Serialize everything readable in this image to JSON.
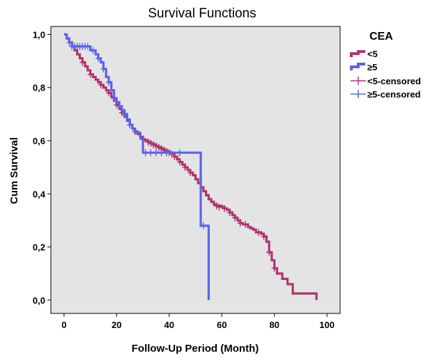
{
  "chart_data": {
    "type": "line",
    "title": "Survival Functions",
    "xlabel": "Follow-Up Period (Month)",
    "ylabel": "Cum Survival",
    "xlim": [
      -5,
      105
    ],
    "ylim": [
      -0.05,
      1.03
    ],
    "xticks": [
      0,
      20,
      40,
      60,
      80,
      100
    ],
    "xtick_labels": [
      "0",
      "20",
      "40",
      "60",
      "80",
      "100"
    ],
    "yticks": [
      0.0,
      0.2,
      0.4,
      0.6,
      0.8,
      1.0
    ],
    "ytick_labels": [
      "0,0",
      "0,2",
      "0,4",
      "0,6",
      "0,8",
      "1,0"
    ],
    "grid": false,
    "background": "#e4e4e4",
    "legend": {
      "title": "CEA",
      "position": "right",
      "entries": [
        "<5",
        "≥5",
        "<5-censored",
        "≥5-censored"
      ]
    },
    "series": [
      {
        "name": "<5",
        "color": "#b0346e",
        "steps": [
          [
            0,
            1.0
          ],
          [
            1,
            0.985
          ],
          [
            2,
            0.97
          ],
          [
            3,
            0.955
          ],
          [
            4,
            0.94
          ],
          [
            5,
            0.925
          ],
          [
            6,
            0.91
          ],
          [
            7,
            0.895
          ],
          [
            8,
            0.88
          ],
          [
            9,
            0.865
          ],
          [
            10,
            0.85
          ],
          [
            11,
            0.84
          ],
          [
            12,
            0.83
          ],
          [
            13,
            0.82
          ],
          [
            14,
            0.81
          ],
          [
            15,
            0.8
          ],
          [
            16,
            0.79
          ],
          [
            17,
            0.78
          ],
          [
            18,
            0.765
          ],
          [
            19,
            0.75
          ],
          [
            20,
            0.735
          ],
          [
            21,
            0.72
          ],
          [
            22,
            0.705
          ],
          [
            23,
            0.69
          ],
          [
            24,
            0.675
          ],
          [
            25,
            0.66
          ],
          [
            26,
            0.645
          ],
          [
            27,
            0.635
          ],
          [
            28,
            0.625
          ],
          [
            29,
            0.615
          ],
          [
            30,
            0.605
          ],
          [
            31,
            0.6
          ],
          [
            32,
            0.595
          ],
          [
            33,
            0.59
          ],
          [
            34,
            0.585
          ],
          [
            35,
            0.58
          ],
          [
            36,
            0.575
          ],
          [
            37,
            0.57
          ],
          [
            38,
            0.565
          ],
          [
            39,
            0.56
          ],
          [
            40,
            0.555
          ],
          [
            41,
            0.55
          ],
          [
            42,
            0.54
          ],
          [
            43,
            0.53
          ],
          [
            44,
            0.52
          ],
          [
            45,
            0.51
          ],
          [
            46,
            0.5
          ],
          [
            47,
            0.49
          ],
          [
            48,
            0.48
          ],
          [
            49,
            0.47
          ],
          [
            50,
            0.455
          ],
          [
            51,
            0.44
          ],
          [
            52,
            0.425
          ],
          [
            53,
            0.41
          ],
          [
            54,
            0.395
          ],
          [
            55,
            0.38
          ],
          [
            56,
            0.37
          ],
          [
            57,
            0.36
          ],
          [
            58,
            0.355
          ],
          [
            60,
            0.35
          ],
          [
            61,
            0.345
          ],
          [
            62,
            0.34
          ],
          [
            63,
            0.33
          ],
          [
            64,
            0.32
          ],
          [
            65,
            0.31
          ],
          [
            66,
            0.3
          ],
          [
            67,
            0.29
          ],
          [
            68,
            0.285
          ],
          [
            70,
            0.275
          ],
          [
            71,
            0.27
          ],
          [
            72,
            0.265
          ],
          [
            73,
            0.255
          ],
          [
            75,
            0.25
          ],
          [
            76,
            0.24
          ],
          [
            77,
            0.22
          ],
          [
            78,
            0.18
          ],
          [
            79,
            0.15
          ],
          [
            80,
            0.12
          ],
          [
            81,
            0.1
          ],
          [
            83,
            0.08
          ],
          [
            85,
            0.06
          ],
          [
            87,
            0.025
          ],
          [
            95,
            0.025
          ],
          [
            96,
            0.0
          ]
        ],
        "censored": [
          [
            7,
            0.895
          ],
          [
            10,
            0.85
          ],
          [
            14,
            0.81
          ],
          [
            17,
            0.78
          ],
          [
            20,
            0.735
          ],
          [
            22,
            0.705
          ],
          [
            25,
            0.66
          ],
          [
            27,
            0.635
          ],
          [
            30,
            0.605
          ],
          [
            32,
            0.595
          ],
          [
            33,
            0.59
          ],
          [
            34,
            0.585
          ],
          [
            35,
            0.58
          ],
          [
            36,
            0.575
          ],
          [
            37,
            0.57
          ],
          [
            38,
            0.565
          ],
          [
            39,
            0.56
          ],
          [
            40,
            0.555
          ],
          [
            41,
            0.55
          ],
          [
            42,
            0.54
          ],
          [
            44,
            0.52
          ],
          [
            46,
            0.5
          ],
          [
            48,
            0.48
          ],
          [
            58,
            0.355
          ],
          [
            59,
            0.35
          ],
          [
            61,
            0.345
          ],
          [
            63,
            0.33
          ],
          [
            65,
            0.31
          ],
          [
            67,
            0.29
          ],
          [
            69,
            0.285
          ],
          [
            74,
            0.255
          ],
          [
            76,
            0.24
          ],
          [
            78,
            0.18
          ],
          [
            80,
            0.12
          ]
        ]
      },
      {
        "name": "≥5",
        "color": "#5b62ee",
        "steps": [
          [
            0,
            1.0
          ],
          [
            1,
            0.985
          ],
          [
            2,
            0.97
          ],
          [
            3,
            0.955
          ],
          [
            10,
            0.94
          ],
          [
            12,
            0.925
          ],
          [
            13,
            0.91
          ],
          [
            14,
            0.895
          ],
          [
            15,
            0.87
          ],
          [
            16,
            0.84
          ],
          [
            17,
            0.82
          ],
          [
            18,
            0.79
          ],
          [
            19,
            0.76
          ],
          [
            20,
            0.745
          ],
          [
            21,
            0.73
          ],
          [
            22,
            0.715
          ],
          [
            23,
            0.7
          ],
          [
            24,
            0.68
          ],
          [
            25,
            0.66
          ],
          [
            26,
            0.645
          ],
          [
            27,
            0.63
          ],
          [
            29,
            0.61
          ],
          [
            30,
            0.555
          ],
          [
            52,
            0.555
          ],
          [
            52,
            0.28
          ],
          [
            55,
            0.28
          ],
          [
            55,
            0.0
          ]
        ],
        "censored": [
          [
            2,
            0.97
          ],
          [
            3,
            0.955
          ],
          [
            4,
            0.955
          ],
          [
            5,
            0.955
          ],
          [
            6,
            0.955
          ],
          [
            7,
            0.955
          ],
          [
            8,
            0.955
          ],
          [
            9,
            0.955
          ],
          [
            11,
            0.94
          ],
          [
            13,
            0.91
          ],
          [
            15,
            0.87
          ],
          [
            17,
            0.82
          ],
          [
            19,
            0.76
          ],
          [
            21,
            0.73
          ],
          [
            23,
            0.7
          ],
          [
            25,
            0.66
          ],
          [
            31,
            0.555
          ],
          [
            33,
            0.555
          ],
          [
            35,
            0.555
          ],
          [
            37,
            0.555
          ],
          [
            39,
            0.555
          ],
          [
            44,
            0.555
          ],
          [
            53,
            0.28
          ]
        ]
      }
    ]
  }
}
